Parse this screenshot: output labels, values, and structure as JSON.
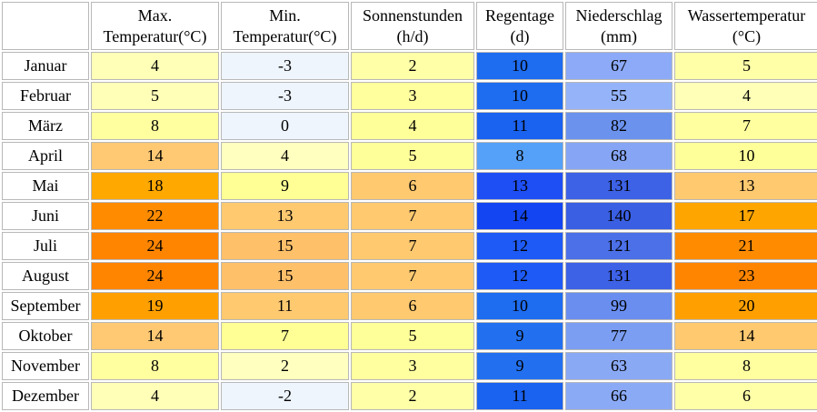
{
  "table": {
    "headers": [
      {
        "line1": "",
        "line2": ""
      },
      {
        "line1": "Max.",
        "line2": "Temperatur(°C)"
      },
      {
        "line1": "Min.",
        "line2": "Temperatur(°C)"
      },
      {
        "line1": "Sonnenstunden",
        "line2": "(h/d)"
      },
      {
        "line1": "Regentage",
        "line2": "(d)"
      },
      {
        "line1": "Niederschlag",
        "line2": "(mm)"
      },
      {
        "line1": "Wassertemperatur",
        "line2": "(°C)"
      }
    ],
    "rows": [
      {
        "month": "Januar",
        "cells": [
          "4",
          "-3",
          "2",
          "10",
          "67",
          "5"
        ]
      },
      {
        "month": "Februar",
        "cells": [
          "5",
          "-3",
          "3",
          "10",
          "55",
          "4"
        ]
      },
      {
        "month": "März",
        "cells": [
          "8",
          "0",
          "4",
          "11",
          "82",
          "7"
        ]
      },
      {
        "month": "April",
        "cells": [
          "14",
          "4",
          "5",
          "8",
          "68",
          "10"
        ]
      },
      {
        "month": "Mai",
        "cells": [
          "18",
          "9",
          "6",
          "13",
          "131",
          "13"
        ]
      },
      {
        "month": "Juni",
        "cells": [
          "22",
          "13",
          "7",
          "14",
          "140",
          "17"
        ]
      },
      {
        "month": "Juli",
        "cells": [
          "24",
          "15",
          "7",
          "12",
          "121",
          "21"
        ]
      },
      {
        "month": "August",
        "cells": [
          "24",
          "15",
          "7",
          "12",
          "131",
          "23"
        ]
      },
      {
        "month": "September",
        "cells": [
          "19",
          "11",
          "6",
          "10",
          "99",
          "20"
        ]
      },
      {
        "month": "Oktober",
        "cells": [
          "14",
          "7",
          "5",
          "9",
          "77",
          "14"
        ]
      },
      {
        "month": "November",
        "cells": [
          "8",
          "2",
          "3",
          "9",
          "63",
          "8"
        ]
      },
      {
        "month": "Dezember",
        "cells": [
          "4",
          "-2",
          "2",
          "11",
          "66",
          "6"
        ]
      }
    ],
    "cell_colors": [
      [
        "#ffffb8",
        "#eef5fd",
        "#ffffa8",
        "#1e6cf0",
        "#8caaf7",
        "#ffffa8"
      ],
      [
        "#ffffb8",
        "#eef5fd",
        "#ffff9e",
        "#1e6cf0",
        "#95b3f9",
        "#ffffb8"
      ],
      [
        "#ffffa0",
        "#eef5fd",
        "#ffff9a",
        "#1a62f0",
        "#6b93ee",
        "#ffffa0"
      ],
      [
        "#ffc973",
        "#ffffc0",
        "#ffff9a",
        "#55a0f8",
        "#86a6f5",
        "#ffff9a"
      ],
      [
        "#ffa800",
        "#ffff95",
        "#ffc970",
        "#1e4ff5",
        "#3d62e6",
        "#ffc970"
      ],
      [
        "#ff8c00",
        "#ffc970",
        "#ffc970",
        "#1346f2",
        "#3a5fe3",
        "#ffa500"
      ],
      [
        "#ff8500",
        "#ffc06a",
        "#ffc970",
        "#1e5af5",
        "#4c70e8",
        "#ff8c00"
      ],
      [
        "#ff8500",
        "#ffc06a",
        "#ffc970",
        "#1e5af5",
        "#3d62e6",
        "#ff8500"
      ],
      [
        "#ffa000",
        "#ffc970",
        "#ffc970",
        "#1e6cf0",
        "#6a8ef0",
        "#ffa000"
      ],
      [
        "#ffc973",
        "#ffff95",
        "#ffff9a",
        "#2270f0",
        "#7b9ef2",
        "#ffc970"
      ],
      [
        "#ffffa0",
        "#ffffc0",
        "#ffffa0",
        "#2270f0",
        "#8aa9f5",
        "#ffffa0"
      ],
      [
        "#ffffb8",
        "#eef5fd",
        "#ffffa8",
        "#1a62f0",
        "#8baaf6",
        "#ffffa8"
      ]
    ]
  }
}
